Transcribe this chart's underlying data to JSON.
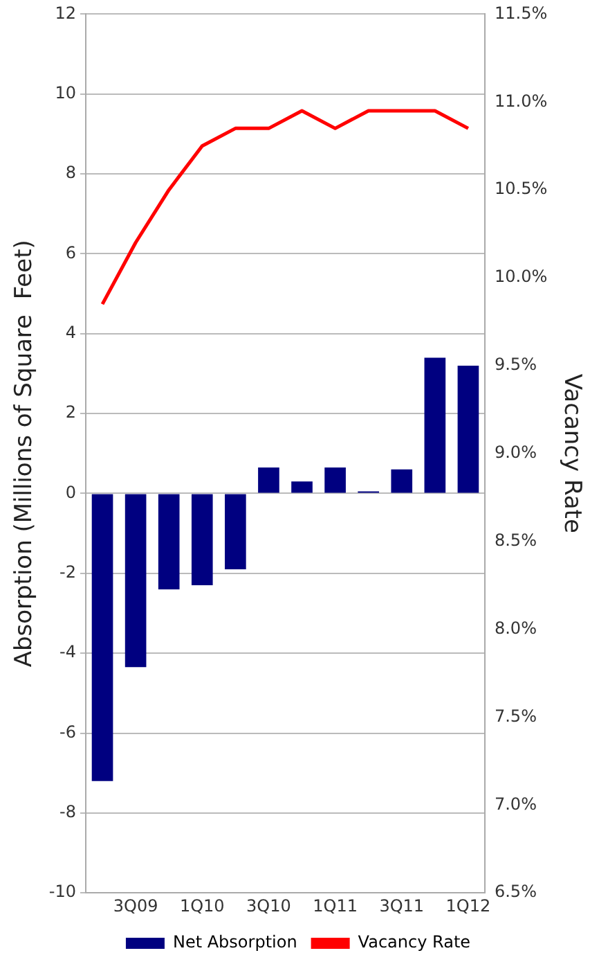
{
  "chart_data": {
    "type": "bar",
    "ylabel": "Absorption (Millions of Square  Feet)",
    "y2label": "Vacancy Rate",
    "categories": [
      null,
      "3Q09",
      null,
      "1Q10",
      null,
      "3Q10",
      null,
      "1Q11",
      null,
      "3Q11",
      null,
      "1Q12"
    ],
    "series": [
      {
        "name": "Net Absorption",
        "color": "#000080",
        "values": [
          -7.2,
          -4.35,
          -2.4,
          -2.3,
          -1.9,
          0.65,
          0.3,
          0.65,
          0.05,
          0.6,
          3.4,
          3.2
        ]
      },
      {
        "name": "Vacancy Rate",
        "type": "line",
        "axis": "y2",
        "color": "#ff0000",
        "marker": "none",
        "values": [
          9.85,
          10.2,
          10.5,
          10.75,
          10.85,
          10.85,
          10.95,
          10.85,
          10.95,
          10.95,
          10.95,
          10.85
        ]
      }
    ],
    "ylim": [
      -10,
      12
    ],
    "yticks": [
      -10,
      -8,
      -6,
      -4,
      -2,
      0,
      2,
      4,
      6,
      8,
      10,
      12
    ],
    "y2lim": [
      6.5,
      11.5
    ],
    "y2ticks": [
      {
        "value": 6.5,
        "label": "6.5%"
      },
      {
        "value": 7,
        "label": "7.0%"
      },
      {
        "value": 7.5,
        "label": "7.5%"
      },
      {
        "value": 8,
        "label": "8.0%"
      },
      {
        "value": 8.5,
        "label": "8.5%"
      },
      {
        "value": 9,
        "label": "9.0%"
      },
      {
        "value": 9.5,
        "label": "9.5%"
      },
      {
        "value": 10,
        "label": "10.0%"
      },
      {
        "value": 10.5,
        "label": "10.5%"
      },
      {
        "value": 11,
        "label": "11.0%"
      },
      {
        "value": 11.5,
        "label": "11.5%"
      }
    ],
    "grid": "y",
    "legend": "bottom"
  }
}
